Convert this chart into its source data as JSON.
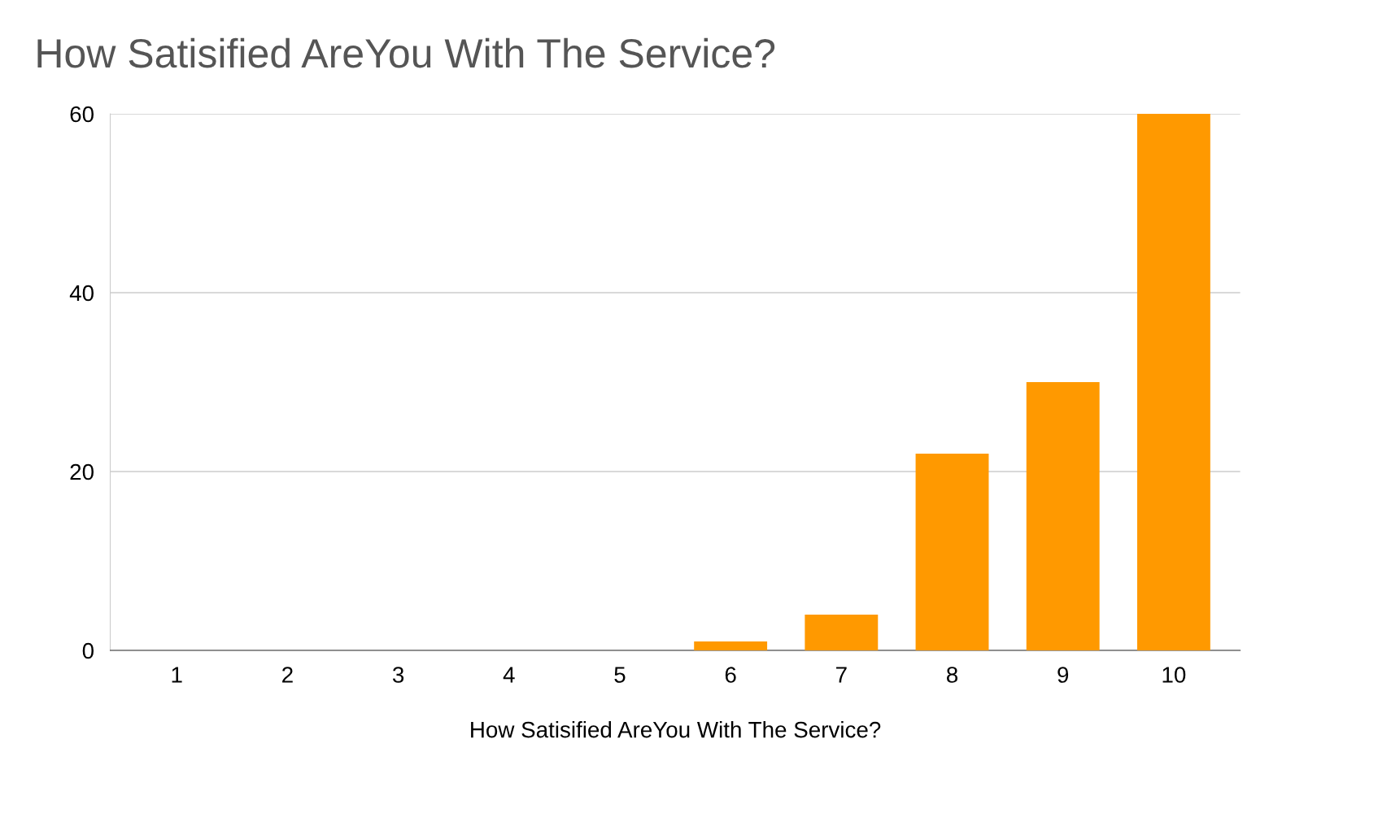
{
  "chart_data": {
    "type": "bar",
    "title": "How Satisified AreYou With The Service?",
    "xlabel": "How Satisified AreYou With The Service?",
    "categories": [
      "1",
      "2",
      "3",
      "4",
      "5",
      "6",
      "7",
      "8",
      "9",
      "10"
    ],
    "values": [
      0,
      0,
      0,
      0,
      0,
      1,
      4,
      22,
      30,
      60
    ],
    "color": "#ff9900",
    "ylim": [
      0,
      60
    ],
    "yticks": [
      0,
      20,
      40,
      60
    ],
    "grid": "y",
    "legend": false
  }
}
